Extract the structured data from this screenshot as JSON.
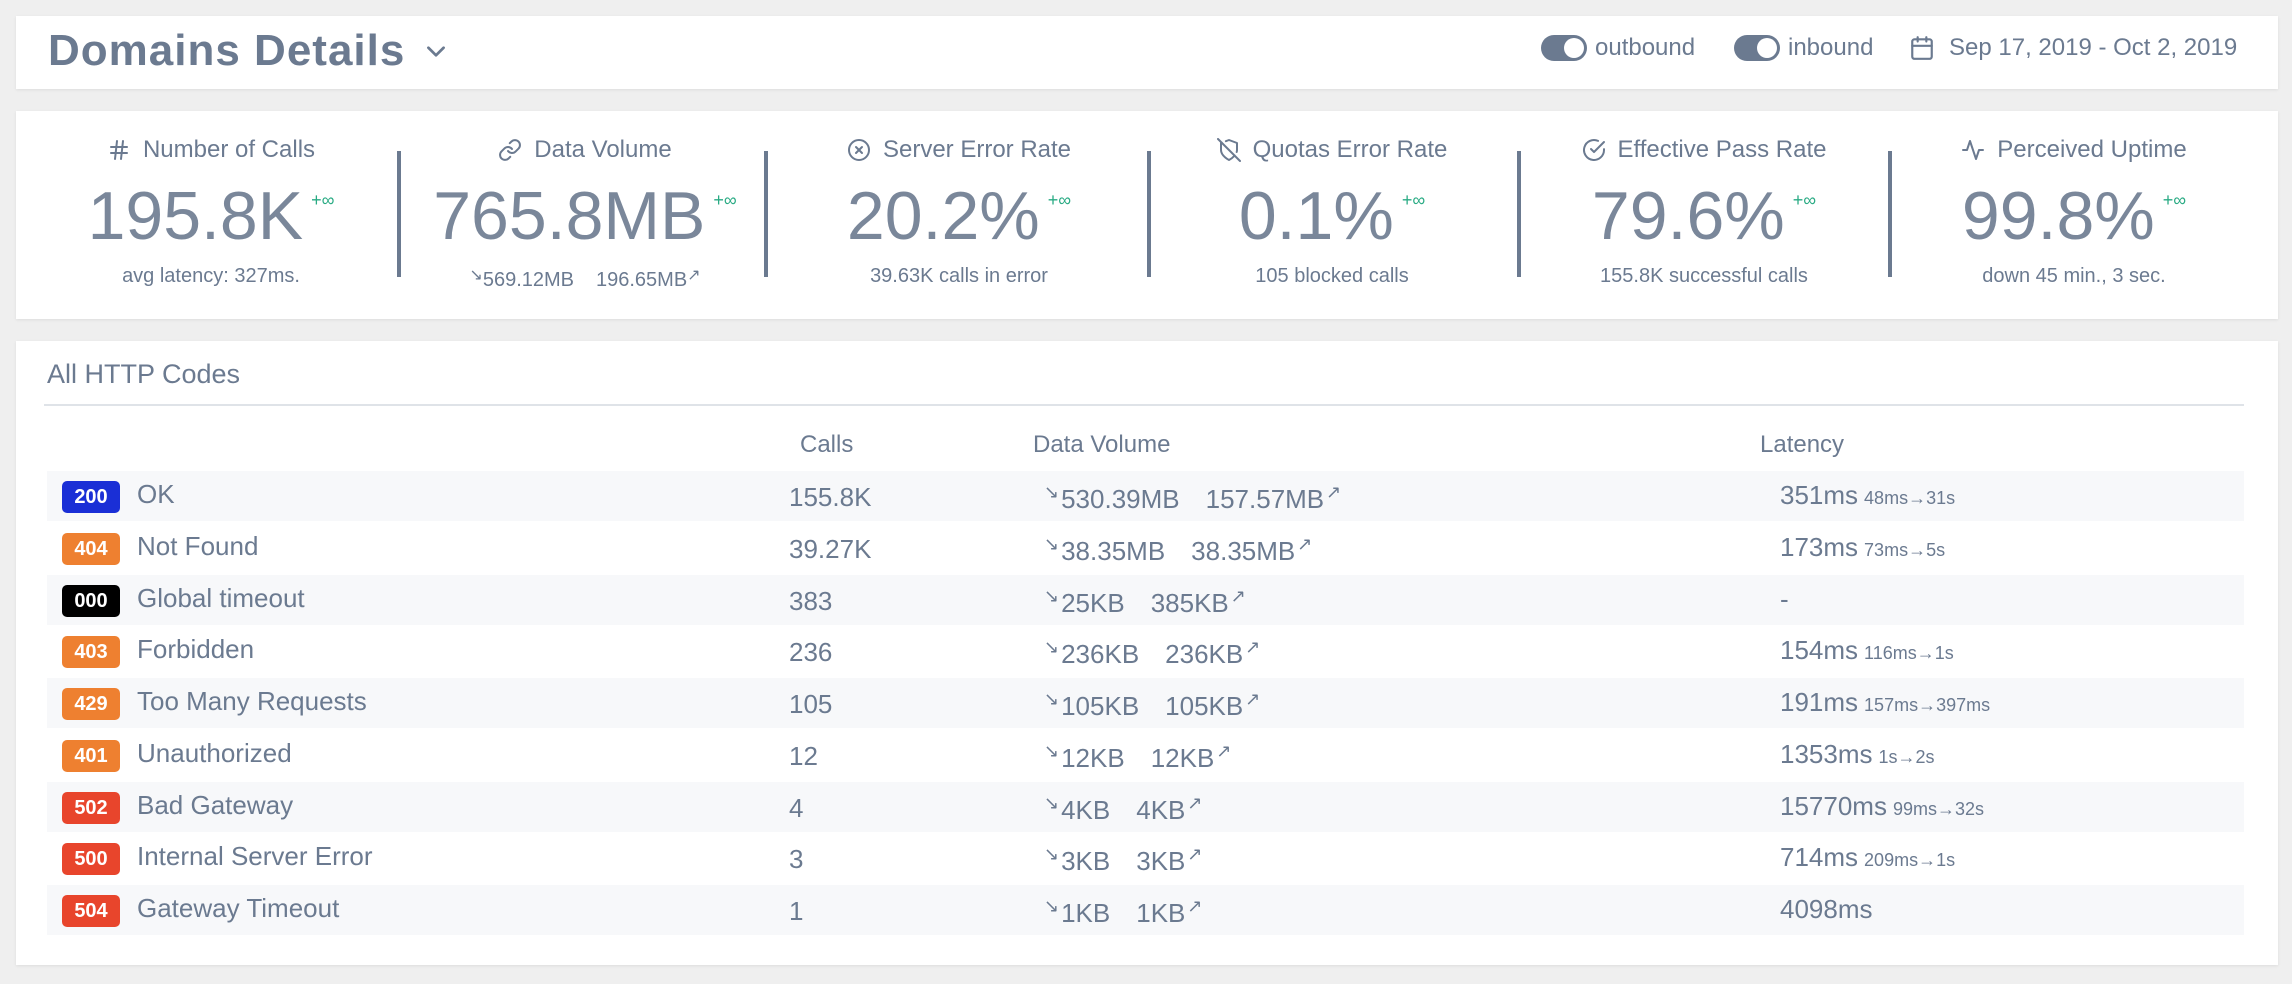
{
  "header": {
    "title": "Domains Details",
    "toggles": [
      {
        "label": "outbound",
        "on": true
      },
      {
        "label": "inbound",
        "on": true
      }
    ],
    "date_range": "Sep 17, 2019 - Oct 2, 2019"
  },
  "stats": [
    {
      "title": "Number of Calls",
      "icon": "hash-icon",
      "value": "195.8K",
      "trend": "+∞",
      "sub": "avg latency: 327ms."
    },
    {
      "title": "Data Volume",
      "icon": "link-icon",
      "value": "765.8MB",
      "trend": "+∞",
      "sub_in": "569.12MB",
      "sub_out": "196.65MB"
    },
    {
      "title": "Server Error Rate",
      "icon": "x-circle-icon",
      "value": "20.2%",
      "trend": "+∞",
      "sub": "39.63K calls in error"
    },
    {
      "title": "Quotas Error Rate",
      "icon": "shield-off-icon",
      "value": "0.1%",
      "trend": "+∞",
      "sub": "105 blocked calls"
    },
    {
      "title": "Effective Pass Rate",
      "icon": "check-circle-icon",
      "value": "79.6%",
      "trend": "+∞",
      "sub": "155.8K successful calls"
    },
    {
      "title": "Perceived Uptime",
      "icon": "activity-icon",
      "value": "99.8%",
      "trend": "+∞",
      "sub": "down 45 min., 3 sec."
    }
  ],
  "codes": {
    "title": "All HTTP Codes",
    "headers": {
      "calls": "Calls",
      "volume": "Data Volume",
      "latency": "Latency"
    },
    "rows": [
      {
        "code": "200",
        "color": "#1a2fd6",
        "label": "OK",
        "calls": "155.8K",
        "vol_in": "530.39MB",
        "vol_out": "157.57MB",
        "latency": "351ms",
        "range": "48ms→31s"
      },
      {
        "code": "404",
        "color": "#ee8030",
        "label": "Not Found",
        "calls": "39.27K",
        "vol_in": "38.35MB",
        "vol_out": "38.35MB",
        "latency": "173ms",
        "range": "73ms→5s"
      },
      {
        "code": "000",
        "color": "#000000",
        "label": "Global timeout",
        "calls": "383",
        "vol_in": "25KB",
        "vol_out": "385KB",
        "latency": "-",
        "range": ""
      },
      {
        "code": "403",
        "color": "#ee8030",
        "label": "Forbidden",
        "calls": "236",
        "vol_in": "236KB",
        "vol_out": "236KB",
        "latency": "154ms",
        "range": "116ms→1s"
      },
      {
        "code": "429",
        "color": "#ee8030",
        "label": "Too Many Requests",
        "calls": "105",
        "vol_in": "105KB",
        "vol_out": "105KB",
        "latency": "191ms",
        "range": "157ms→397ms"
      },
      {
        "code": "401",
        "color": "#ee8030",
        "label": "Unauthorized",
        "calls": "12",
        "vol_in": "12KB",
        "vol_out": "12KB",
        "latency": "1353ms",
        "range": "1s→2s"
      },
      {
        "code": "502",
        "color": "#e8452c",
        "label": "Bad Gateway",
        "calls": "4",
        "vol_in": "4KB",
        "vol_out": "4KB",
        "latency": "15770ms",
        "range": "99ms→32s"
      },
      {
        "code": "500",
        "color": "#e8452c",
        "label": "Internal Server Error",
        "calls": "3",
        "vol_in": "3KB",
        "vol_out": "3KB",
        "latency": "714ms",
        "range": "209ms→1s"
      },
      {
        "code": "504",
        "color": "#e8452c",
        "label": "Gateway Timeout",
        "calls": "1",
        "vol_in": "1KB",
        "vol_out": "1KB",
        "latency": "4098ms",
        "range": ""
      }
    ]
  }
}
